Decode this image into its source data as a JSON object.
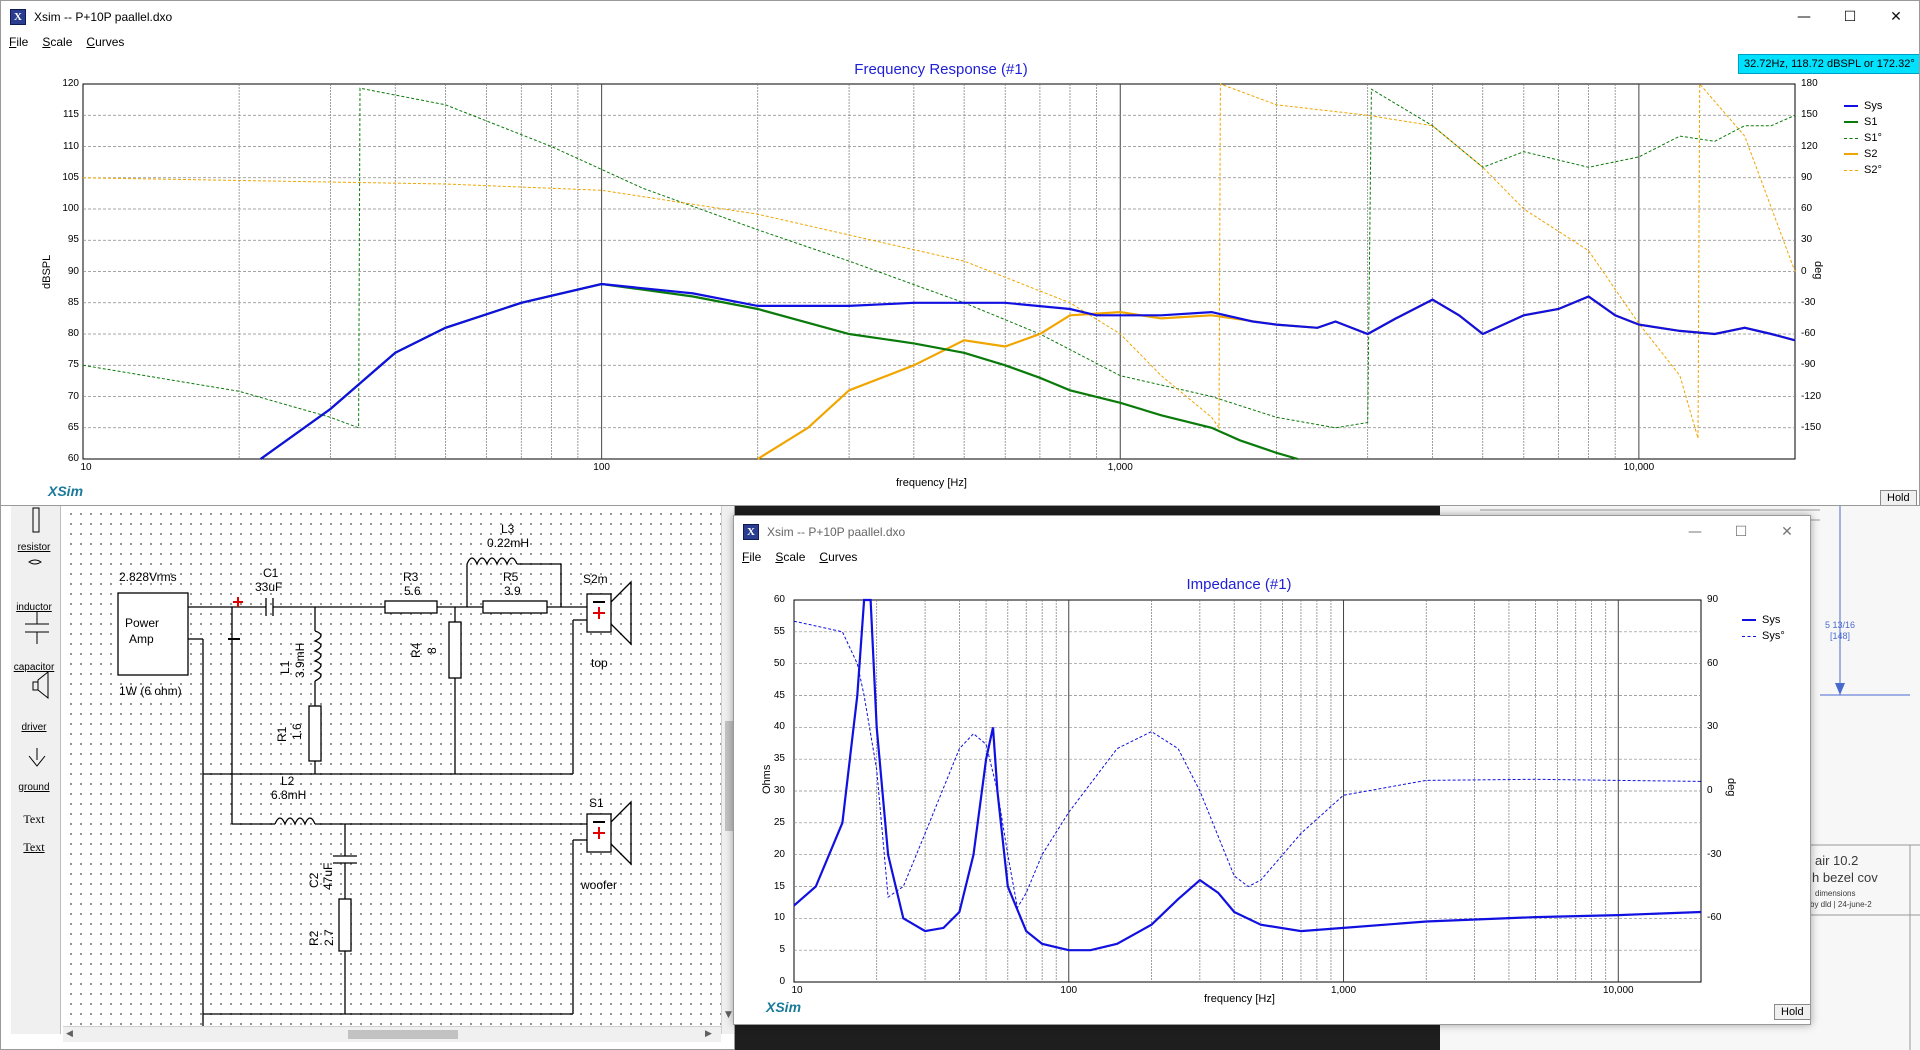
{
  "main_window": {
    "title": "Xsim -- P+10P paallel.dxo",
    "menu": [
      "File",
      "Scale",
      "Curves"
    ],
    "buttons": {
      "minimize": "—",
      "maximize": "☐",
      "close": "✕"
    }
  },
  "freq_plot": {
    "title": "Frequency Response (#1)",
    "hover_readout": "32.72Hz, 118.72 dBSPL or 172.32°",
    "y_label": "dBSPL",
    "y2_label": "deg",
    "x_label": "frequency [Hz]",
    "y_ticks": [
      "120",
      "115",
      "110",
      "105",
      "100",
      "95",
      "90",
      "85",
      "80",
      "75",
      "70",
      "65",
      "60"
    ],
    "y2_ticks": [
      "180",
      "150",
      "120",
      "90",
      "60",
      "30",
      "0",
      "-30",
      "-60",
      "-90",
      "-120",
      "-150"
    ],
    "x_ticks": [
      "10",
      "100",
      "1,000",
      "10,000"
    ],
    "legend": [
      {
        "name": "Sys",
        "color": "#1010e0",
        "dashed": false
      },
      {
        "name": "S1",
        "color": "#0a7a0a",
        "dashed": false
      },
      {
        "name": "S1°",
        "color": "#0a7a0a",
        "dashed": true
      },
      {
        "name": "S2",
        "color": "#f0a500",
        "dashed": false
      },
      {
        "name": "S2°",
        "color": "#f0a500",
        "dashed": true
      }
    ],
    "brand": "XSim",
    "hold": "Hold"
  },
  "schematic": {
    "tools": [
      "resistor",
      "inductor",
      "capacitor",
      "driver",
      "ground",
      "Text",
      "Text"
    ],
    "source_voltage": "2.828Vrms",
    "source_name_1": "Power",
    "source_name_2": "Amp",
    "source_power": "1W (6 ohm)",
    "C1_name": "C1",
    "C1_val": "33uF",
    "L1_name": "L1",
    "L1_val": "3.9mH",
    "R1_name": "R1",
    "R1_val": "1.6",
    "R3_name": "R3",
    "R3_val": "5.6",
    "R4_name": "R4",
    "R4_val": "8",
    "L3_name": "L3",
    "L3_val": "0.22mH",
    "R5_name": "R5",
    "R5_val": "3.9",
    "S2_name": "S2m",
    "S2_label": "top",
    "L2_name": "L2",
    "L2_val": "6.8mH",
    "C2_name": "C2",
    "C2_val": "47uF",
    "R2_name": "R2",
    "R2_val": "2.7",
    "S1_name": "S1",
    "S1_label": "woofer"
  },
  "imp_window": {
    "title": "Xsim -- P+10P paallel.dxo",
    "menu": [
      "File",
      "Scale",
      "Curves"
    ],
    "buttons": {
      "minimize": "—",
      "maximize": "☐",
      "close": "✕"
    }
  },
  "imp_plot": {
    "title": "Impedance (#1)",
    "y_label": "Ohms",
    "y2_label": "deg",
    "x_label": "frequency [Hz]",
    "y_ticks": [
      "60",
      "55",
      "50",
      "45",
      "40",
      "35",
      "30",
      "25",
      "20",
      "15",
      "10",
      "5",
      "0"
    ],
    "y2_ticks": [
      "90",
      "60",
      "30",
      "0",
      "-30",
      "-60"
    ],
    "x_ticks": [
      "10",
      "100",
      "1,000",
      "10,000"
    ],
    "legend": [
      {
        "name": "Sys",
        "color": "#1010e0",
        "dashed": false
      },
      {
        "name": "Sys°",
        "color": "#1010e0",
        "dashed": true
      }
    ],
    "brand": "XSim",
    "hold": "Hold"
  },
  "background_doc": {
    "line1": "air 10.2",
    "line2": "h bezel cov",
    "line3": "dimensions",
    "line4": "by dld | 24-june-2",
    "dim1": "5 13/16",
    "dim2": "[148]"
  }
}
